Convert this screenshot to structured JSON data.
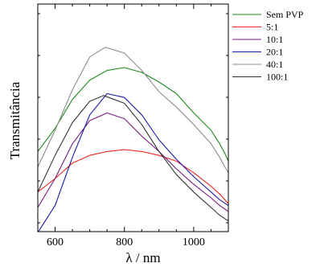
{
  "chart_data": {
    "type": "line",
    "title": "",
    "xlabel": "λ / nm",
    "ylabel": "Transmitância",
    "xlim": [
      550,
      1100
    ],
    "ylim": [
      0,
      1
    ],
    "x_ticks": [
      600,
      800,
      1000
    ],
    "y_ticks_labeled": false,
    "grid": false,
    "legend_position": "top-right, outside plot",
    "series": [
      {
        "name": "Sem PVP",
        "color": "#1a8a1a",
        "points": [
          [
            550,
            0.34
          ],
          [
            600,
            0.46
          ],
          [
            650,
            0.61
          ],
          [
            700,
            0.71
          ],
          [
            750,
            0.76
          ],
          [
            800,
            0.775
          ],
          [
            850,
            0.75
          ],
          [
            900,
            0.7
          ],
          [
            950,
            0.64
          ],
          [
            1000,
            0.54
          ],
          [
            1050,
            0.45
          ],
          [
            1075,
            0.38
          ],
          [
            1090,
            0.33
          ],
          [
            1100,
            0.29
          ]
        ]
      },
      {
        "name": "5:1",
        "color": "#e8241c",
        "points": [
          [
            550,
            0.13
          ],
          [
            600,
            0.2
          ],
          [
            650,
            0.28
          ],
          [
            700,
            0.32
          ],
          [
            750,
            0.34
          ],
          [
            800,
            0.35
          ],
          [
            850,
            0.34
          ],
          [
            900,
            0.32
          ],
          [
            950,
            0.29
          ],
          [
            1000,
            0.23
          ],
          [
            1050,
            0.16
          ],
          [
            1075,
            0.12
          ],
          [
            1100,
            0.07
          ]
        ]
      },
      {
        "name": "10:1",
        "color": "#7a1a7a",
        "points": [
          [
            550,
            0.05
          ],
          [
            600,
            0.2
          ],
          [
            650,
            0.38
          ],
          [
            700,
            0.5
          ],
          [
            750,
            0.54
          ],
          [
            800,
            0.51
          ],
          [
            850,
            0.42
          ],
          [
            900,
            0.34
          ],
          [
            950,
            0.25
          ],
          [
            1000,
            0.17
          ],
          [
            1050,
            0.1
          ],
          [
            1075,
            0.06
          ],
          [
            1100,
            0.03
          ]
        ]
      },
      {
        "name": "20:1",
        "color": "#1a1aa8",
        "points": [
          [
            550,
            -0.08
          ],
          [
            600,
            0.06
          ],
          [
            650,
            0.31
          ],
          [
            700,
            0.53
          ],
          [
            750,
            0.64
          ],
          [
            800,
            0.62
          ],
          [
            850,
            0.53
          ],
          [
            900,
            0.4
          ],
          [
            950,
            0.3
          ],
          [
            1000,
            0.21
          ],
          [
            1050,
            0.13
          ],
          [
            1075,
            0.09
          ],
          [
            1100,
            0.06
          ]
        ]
      },
      {
        "name": "40:1",
        "color": "#8c8c8c",
        "points": [
          [
            550,
            0.26
          ],
          [
            600,
            0.45
          ],
          [
            650,
            0.66
          ],
          [
            700,
            0.83
          ],
          [
            745,
            0.88
          ],
          [
            800,
            0.85
          ],
          [
            850,
            0.76
          ],
          [
            900,
            0.65
          ],
          [
            950,
            0.57
          ],
          [
            1000,
            0.48
          ],
          [
            1050,
            0.38
          ],
          [
            1075,
            0.31
          ],
          [
            1090,
            0.26
          ],
          [
            1100,
            0.23
          ]
        ]
      },
      {
        "name": "100:1",
        "color": "#333333",
        "points": [
          [
            550,
            0.13
          ],
          [
            600,
            0.32
          ],
          [
            650,
            0.49
          ],
          [
            700,
            0.6
          ],
          [
            740,
            0.63
          ],
          [
            800,
            0.59
          ],
          [
            850,
            0.48
          ],
          [
            900,
            0.34
          ],
          [
            950,
            0.22
          ],
          [
            1000,
            0.13
          ],
          [
            1050,
            0.05
          ],
          [
            1075,
            0.01
          ],
          [
            1100,
            -0.02
          ]
        ]
      }
    ]
  }
}
